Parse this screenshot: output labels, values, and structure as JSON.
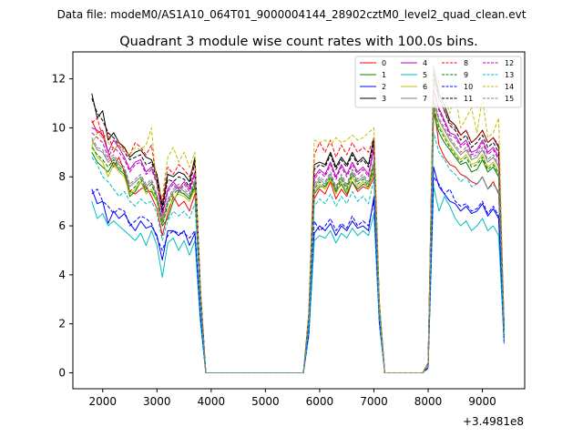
{
  "suptitle": "Data file: modeM0/AS1A10_064T01_9000004144_28902cztM0_level2_quad_clean.evt",
  "chart_data": {
    "type": "line",
    "title": "Quadrant 3 module wise count rates with 100.0s bins.",
    "xlabel": "",
    "ylabel": "",
    "x_offset_label": "+3.4981e8",
    "xlim": [
      1450,
      9780
    ],
    "ylim": [
      -0.65,
      13.1
    ],
    "xticks": [
      2000,
      3000,
      4000,
      5000,
      6000,
      7000,
      8000,
      9000
    ],
    "yticks": [
      0,
      2,
      4,
      6,
      8,
      10,
      12
    ],
    "legend_position": "top-right",
    "x": [
      1800,
      1900,
      2000,
      2100,
      2200,
      2300,
      2400,
      2500,
      2600,
      2700,
      2800,
      2900,
      3000,
      3100,
      3200,
      3300,
      3400,
      3500,
      3600,
      3700,
      3800,
      3900,
      4000,
      5700,
      5800,
      5900,
      6000,
      6100,
      6200,
      6300,
      6400,
      6500,
      6600,
      6700,
      6800,
      6900,
      7000,
      7100,
      7200,
      7900,
      8000,
      8100,
      8200,
      8300,
      8400,
      8500,
      8600,
      8700,
      8800,
      8900,
      9000,
      9100,
      9200,
      9300,
      9400
    ],
    "series": [
      {
        "name": "0",
        "color": "#ff0000",
        "dash": "solid",
        "values": [
          10.3,
          9.8,
          9.9,
          9.0,
          8.4,
          8.8,
          8.2,
          7.4,
          7.3,
          7.5,
          7.6,
          7.2,
          6.7,
          5.6,
          6.5,
          7.2,
          6.8,
          7.0,
          6.6,
          7.3,
          3.0,
          0.0,
          0.0,
          0.0,
          2.0,
          7.1,
          7.5,
          7.3,
          7.8,
          7.1,
          7.5,
          7.2,
          7.8,
          7.4,
          7.6,
          7.5,
          8.0,
          2.5,
          0.0,
          0.0,
          0.3,
          11.0,
          9.3,
          8.8,
          8.5,
          8.4,
          8.1,
          8.0,
          7.8,
          7.7,
          8.0,
          7.5,
          7.8,
          7.3,
          1.5
        ]
      },
      {
        "name": "1",
        "color": "#008000",
        "dash": "solid",
        "values": [
          9.0,
          8.6,
          8.4,
          8.2,
          8.6,
          8.3,
          8.1,
          7.2,
          7.4,
          7.8,
          7.4,
          7.4,
          7.0,
          6.0,
          6.3,
          7.0,
          7.4,
          7.3,
          7.1,
          7.6,
          3.1,
          0.0,
          0.0,
          0.0,
          2.1,
          7.3,
          7.6,
          7.6,
          7.9,
          7.4,
          7.7,
          7.3,
          7.8,
          7.5,
          7.7,
          7.6,
          8.2,
          2.6,
          0.0,
          0.0,
          0.3,
          10.6,
          9.8,
          9.4,
          9.1,
          8.8,
          8.5,
          8.6,
          8.2,
          8.3,
          8.7,
          8.2,
          8.4,
          8.0,
          1.7
        ]
      },
      {
        "name": "2",
        "color": "#0000ff",
        "dash": "solid",
        "values": [
          7.5,
          6.9,
          7.0,
          6.1,
          6.6,
          6.3,
          6.5,
          6.1,
          5.8,
          6.2,
          5.9,
          6.0,
          5.6,
          4.6,
          5.8,
          5.8,
          5.6,
          5.8,
          5.2,
          5.7,
          2.3,
          0.0,
          0.0,
          0.0,
          1.6,
          5.7,
          6.0,
          5.8,
          6.1,
          5.6,
          6.0,
          5.8,
          6.2,
          5.9,
          6.0,
          5.8,
          7.2,
          2.1,
          0.0,
          0.0,
          0.2,
          8.4,
          7.6,
          7.3,
          7.0,
          6.9,
          6.6,
          6.8,
          6.5,
          6.6,
          6.9,
          6.4,
          6.7,
          6.3,
          1.2
        ]
      },
      {
        "name": "3",
        "color": "#000000",
        "dash": "solid",
        "values": [
          11.4,
          10.4,
          10.7,
          9.5,
          9.8,
          9.4,
          9.2,
          8.8,
          9.0,
          9.1,
          8.8,
          8.7,
          8.1,
          6.8,
          8.1,
          8.0,
          8.2,
          8.1,
          7.8,
          8.8,
          3.5,
          0.0,
          0.0,
          0.0,
          2.4,
          8.5,
          8.6,
          8.5,
          9.0,
          8.4,
          8.8,
          8.5,
          9.0,
          8.6,
          8.8,
          8.5,
          9.6,
          2.9,
          0.0,
          0.0,
          0.4,
          12.4,
          11.4,
          10.9,
          10.3,
          10.1,
          9.7,
          9.9,
          9.4,
          9.6,
          9.9,
          9.4,
          9.6,
          9.2,
          1.9
        ]
      },
      {
        "name": "4",
        "color": "#bf00bf",
        "dash": "solid",
        "values": [
          10.0,
          9.9,
          9.7,
          9.0,
          9.5,
          9.2,
          8.8,
          8.3,
          8.6,
          8.7,
          8.2,
          8.4,
          7.8,
          6.5,
          7.5,
          7.8,
          7.5,
          7.8,
          7.5,
          8.2,
          3.3,
          0.0,
          0.0,
          0.0,
          2.3,
          8.0,
          8.3,
          8.1,
          8.6,
          8.0,
          8.5,
          8.1,
          8.6,
          8.2,
          8.4,
          8.1,
          9.2,
          2.8,
          0.0,
          0.0,
          0.4,
          11.6,
          10.8,
          10.3,
          9.8,
          9.7,
          9.3,
          9.5,
          9.0,
          9.1,
          9.5,
          9.0,
          9.2,
          8.8,
          1.8
        ]
      },
      {
        "name": "5",
        "color": "#00bfbf",
        "dash": "solid",
        "values": [
          7.0,
          6.3,
          6.5,
          6.0,
          6.2,
          6.0,
          5.8,
          5.6,
          5.4,
          5.7,
          5.2,
          5.8,
          5.2,
          3.9,
          5.3,
          5.5,
          5.0,
          5.4,
          4.8,
          5.4,
          2.1,
          0.0,
          0.0,
          0.0,
          1.5,
          5.4,
          5.6,
          5.5,
          5.8,
          5.3,
          5.7,
          5.5,
          5.9,
          5.6,
          5.8,
          5.6,
          6.5,
          2.0,
          0.0,
          0.0,
          0.2,
          7.6,
          6.6,
          7.2,
          6.8,
          6.3,
          6.0,
          6.2,
          5.8,
          6.0,
          6.3,
          5.8,
          6.0,
          5.6,
          1.2
        ]
      },
      {
        "name": "6",
        "color": "#bfbf00",
        "dash": "solid",
        "values": [
          9.3,
          8.8,
          8.6,
          8.0,
          8.5,
          8.2,
          8.0,
          7.3,
          7.5,
          7.8,
          7.3,
          7.5,
          7.0,
          6.1,
          6.7,
          7.1,
          7.3,
          7.2,
          7.0,
          7.5,
          3.0,
          0.0,
          0.0,
          0.0,
          2.1,
          7.4,
          7.7,
          7.5,
          7.9,
          7.3,
          7.8,
          7.4,
          8.0,
          7.6,
          7.8,
          7.5,
          8.4,
          2.6,
          0.0,
          0.0,
          0.3,
          10.8,
          10.1,
          9.7,
          9.3,
          9.0,
          8.7,
          8.9,
          8.5,
          8.6,
          8.9,
          8.4,
          8.6,
          8.2,
          1.7
        ]
      },
      {
        "name": "7",
        "color": "#808080",
        "dash": "solid",
        "values": [
          9.5,
          9.1,
          9.0,
          8.6,
          8.8,
          8.5,
          8.3,
          7.6,
          7.8,
          8.0,
          7.6,
          7.8,
          7.2,
          6.2,
          7.0,
          7.4,
          7.6,
          7.4,
          7.2,
          7.8,
          3.1,
          0.0,
          0.0,
          0.0,
          2.2,
          7.6,
          7.9,
          7.7,
          8.1,
          7.5,
          8.0,
          7.6,
          8.2,
          7.8,
          8.0,
          7.7,
          8.6,
          2.7,
          0.0,
          0.0,
          0.3,
          11.1,
          10.3,
          9.9,
          9.5,
          9.2,
          8.9,
          9.1,
          8.7,
          8.8,
          9.1,
          8.6,
          8.8,
          8.4,
          1.7
        ]
      },
      {
        "name": "8",
        "color": "#ff0000",
        "dash": "dashed",
        "values": [
          10.2,
          10.4,
          9.6,
          9.8,
          9.0,
          9.4,
          9.1,
          8.9,
          9.4,
          9.2,
          8.9,
          9.3,
          7.8,
          7.0,
          8.4,
          8.1,
          8.5,
          8.3,
          8.0,
          8.6,
          3.4,
          0.0,
          0.0,
          0.0,
          2.4,
          8.9,
          9.4,
          9.0,
          9.5,
          8.8,
          9.3,
          8.9,
          9.4,
          9.0,
          9.2,
          9.0,
          9.6,
          2.9,
          0.0,
          0.0,
          0.4,
          12.0,
          11.2,
          10.7,
          10.2,
          10.0,
          9.7,
          9.9,
          9.4,
          9.6,
          9.9,
          9.4,
          9.6,
          9.3,
          1.9
        ]
      },
      {
        "name": "9",
        "color": "#008000",
        "dash": "dashed",
        "values": [
          9.2,
          8.9,
          8.7,
          8.4,
          8.7,
          8.4,
          8.2,
          7.4,
          7.6,
          7.9,
          7.5,
          7.7,
          7.1,
          6.0,
          6.9,
          7.3,
          7.5,
          7.3,
          7.1,
          7.7,
          3.1,
          0.0,
          0.0,
          0.0,
          2.1,
          7.5,
          7.8,
          7.6,
          8.0,
          7.4,
          7.9,
          7.5,
          8.1,
          7.7,
          7.9,
          7.6,
          8.5,
          2.6,
          0.0,
          0.0,
          0.3,
          10.9,
          10.0,
          9.6,
          9.2,
          8.9,
          8.6,
          8.8,
          8.4,
          8.5,
          8.8,
          8.3,
          8.5,
          8.1,
          1.7
        ]
      },
      {
        "name": "10",
        "color": "#0000ff",
        "dash": "dashed",
        "values": [
          7.3,
          7.5,
          7.0,
          6.8,
          6.5,
          6.7,
          6.6,
          6.0,
          6.2,
          6.4,
          6.3,
          6.1,
          5.5,
          5.0,
          5.6,
          5.8,
          5.7,
          5.7,
          5.5,
          5.8,
          2.3,
          0.0,
          0.0,
          0.0,
          1.6,
          6.2,
          5.8,
          6.0,
          6.3,
          5.8,
          6.1,
          5.9,
          6.4,
          6.0,
          6.2,
          6.0,
          7.0,
          2.1,
          0.0,
          0.0,
          0.2,
          8.0,
          7.7,
          7.3,
          7.5,
          7.0,
          6.8,
          6.9,
          6.6,
          6.7,
          7.0,
          6.5,
          6.8,
          6.4,
          1.3
        ]
      },
      {
        "name": "11",
        "color": "#000000",
        "dash": "dashed",
        "values": [
          11.2,
          10.6,
          10.3,
          9.8,
          9.6,
          9.3,
          9.0,
          8.7,
          8.8,
          8.9,
          8.5,
          8.6,
          7.9,
          6.6,
          7.9,
          7.8,
          8.0,
          7.9,
          7.6,
          8.6,
          3.4,
          0.0,
          0.0,
          0.0,
          2.3,
          8.3,
          8.5,
          8.4,
          8.9,
          8.3,
          8.7,
          8.4,
          8.9,
          8.5,
          8.7,
          8.4,
          9.4,
          2.8,
          0.0,
          0.0,
          0.4,
          12.2,
          11.2,
          10.7,
          10.1,
          9.9,
          9.5,
          9.7,
          9.2,
          9.4,
          9.7,
          9.2,
          9.4,
          9.0,
          1.9
        ]
      },
      {
        "name": "12",
        "color": "#bf00bf",
        "dash": "dashed",
        "values": [
          9.8,
          9.6,
          9.4,
          8.8,
          9.2,
          9.0,
          8.7,
          8.2,
          8.5,
          8.6,
          8.1,
          8.3,
          7.7,
          6.4,
          7.4,
          7.7,
          7.4,
          7.7,
          7.4,
          8.1,
          3.3,
          0.0,
          0.0,
          0.0,
          2.2,
          7.9,
          8.2,
          8.0,
          8.5,
          7.9,
          8.4,
          8.0,
          8.5,
          8.1,
          8.3,
          8.0,
          9.1,
          2.7,
          0.0,
          0.0,
          0.4,
          11.5,
          10.7,
          10.2,
          9.7,
          9.6,
          9.2,
          9.4,
          8.9,
          9.0,
          9.4,
          8.9,
          9.1,
          8.7,
          1.8
        ]
      },
      {
        "name": "13",
        "color": "#00bfbf",
        "dash": "dashed",
        "values": [
          8.8,
          8.5,
          8.0,
          7.8,
          7.5,
          7.2,
          7.4,
          7.0,
          6.8,
          7.1,
          6.9,
          7.0,
          6.5,
          5.4,
          6.2,
          6.6,
          6.4,
          6.6,
          6.3,
          6.9,
          2.8,
          0.0,
          0.0,
          0.0,
          1.9,
          6.8,
          7.1,
          6.9,
          7.3,
          6.8,
          7.2,
          6.9,
          7.4,
          7.0,
          7.2,
          6.9,
          7.9,
          2.4,
          0.0,
          0.0,
          0.3,
          9.8,
          9.0,
          8.7,
          8.3,
          8.1,
          7.8,
          8.0,
          7.6,
          7.7,
          8.0,
          7.5,
          7.7,
          7.4,
          1.5
        ]
      },
      {
        "name": "14",
        "color": "#bfbf00",
        "dash": "dashed",
        "values": [
          9.3,
          9.8,
          9.6,
          9.4,
          9.1,
          9.3,
          9.0,
          8.9,
          9.2,
          9.1,
          9.3,
          10.0,
          7.5,
          7.2,
          8.8,
          9.2,
          8.6,
          9.0,
          8.4,
          9.0,
          3.6,
          0.0,
          0.0,
          0.0,
          2.5,
          9.5,
          9.4,
          9.5,
          9.3,
          9.6,
          9.4,
          9.5,
          9.7,
          9.5,
          9.6,
          9.8,
          10.0,
          3.0,
          0.0,
          0.0,
          0.4,
          12.6,
          11.8,
          11.2,
          10.6,
          11.4,
          10.0,
          10.4,
          10.8,
          9.8,
          11.2,
          9.6,
          9.8,
          10.4,
          2.0
        ]
      },
      {
        "name": "15",
        "color": "#808080",
        "dash": "dashed",
        "values": [
          9.6,
          9.2,
          9.1,
          8.7,
          8.9,
          8.6,
          8.4,
          7.7,
          7.9,
          8.1,
          7.7,
          7.9,
          7.3,
          6.3,
          7.1,
          7.5,
          7.7,
          7.5,
          7.3,
          7.9,
          3.2,
          0.0,
          0.0,
          0.0,
          2.2,
          7.7,
          8.0,
          7.8,
          8.2,
          7.6,
          8.1,
          7.7,
          8.3,
          7.9,
          8.1,
          7.8,
          8.7,
          2.7,
          0.0,
          0.0,
          0.3,
          11.2,
          10.4,
          10.0,
          9.6,
          9.3,
          9.0,
          9.2,
          8.8,
          8.9,
          9.2,
          8.7,
          8.9,
          8.5,
          1.8
        ]
      }
    ]
  }
}
